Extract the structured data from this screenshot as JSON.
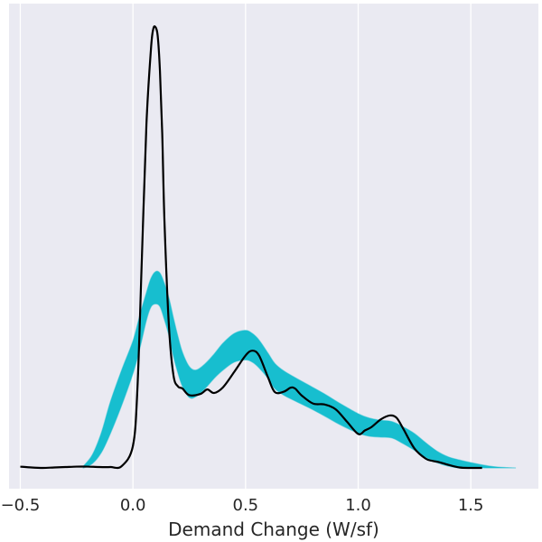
{
  "chart_data": {
    "type": "line",
    "title": "",
    "xlabel": "Demand Change (W/sf)",
    "ylabel": "",
    "xlim": [
      -0.55,
      1.8
    ],
    "ylim": [
      0,
      1
    ],
    "xticks": [
      -0.5,
      0.0,
      0.5,
      1.0,
      1.5
    ],
    "xtick_labels": [
      "−0.5",
      "0.0",
      "0.5",
      "1.0",
      "1.5"
    ],
    "grid": true,
    "colors": {
      "background": "#eaeaf2",
      "grid": "#ffffff",
      "band": "#17becf",
      "observed": "#000000"
    },
    "series": [
      {
        "style": "band",
        "x": [
          -0.22,
          -0.18,
          -0.14,
          -0.1,
          -0.05,
          0.0,
          0.03,
          0.06,
          0.08,
          0.1,
          0.12,
          0.14,
          0.16,
          0.18,
          0.2,
          0.22,
          0.25,
          0.28,
          0.32,
          0.36,
          0.4,
          0.45,
          0.5,
          0.53,
          0.56,
          0.6,
          0.63,
          0.67,
          0.72,
          0.78,
          0.85,
          0.92,
          1.0,
          1.05,
          1.1,
          1.15,
          1.2,
          1.25,
          1.3,
          1.35,
          1.4,
          1.45,
          1.5,
          1.55,
          1.6,
          1.65,
          1.7
        ],
        "lower": [
          0.0,
          0.01,
          0.035,
          0.078,
          0.142,
          0.214,
          0.27,
          0.335,
          0.365,
          0.372,
          0.366,
          0.336,
          0.3,
          0.253,
          0.215,
          0.185,
          0.16,
          0.162,
          0.18,
          0.203,
          0.222,
          0.24,
          0.245,
          0.24,
          0.227,
          0.203,
          0.18,
          0.165,
          0.152,
          0.137,
          0.118,
          0.098,
          0.079,
          0.072,
          0.07,
          0.068,
          0.055,
          0.04,
          0.024,
          0.012,
          0.004,
          0.0,
          0.0,
          0.0,
          0.0,
          0.0,
          0.0
        ],
        "upper": [
          0.004,
          0.03,
          0.08,
          0.15,
          0.222,
          0.288,
          0.345,
          0.398,
          0.43,
          0.445,
          0.442,
          0.418,
          0.385,
          0.34,
          0.298,
          0.262,
          0.23,
          0.222,
          0.236,
          0.258,
          0.283,
          0.305,
          0.312,
          0.305,
          0.29,
          0.26,
          0.237,
          0.22,
          0.205,
          0.188,
          0.168,
          0.146,
          0.123,
          0.113,
          0.108,
          0.105,
          0.093,
          0.078,
          0.057,
          0.038,
          0.025,
          0.018,
          0.012,
          0.007,
          0.003,
          0.001,
          0.0
        ]
      },
      {
        "style": "line",
        "x": [
          -0.5,
          -0.45,
          -0.4,
          -0.35,
          -0.3,
          -0.25,
          -0.2,
          -0.15,
          -0.1,
          -0.05,
          0.0,
          0.02,
          0.04,
          0.06,
          0.08,
          0.09,
          0.1,
          0.11,
          0.12,
          0.13,
          0.14,
          0.16,
          0.18,
          0.2,
          0.22,
          0.25,
          0.3,
          0.33,
          0.36,
          0.4,
          0.45,
          0.5,
          0.53,
          0.56,
          0.6,
          0.63,
          0.67,
          0.7,
          0.72,
          0.75,
          0.8,
          0.85,
          0.9,
          0.95,
          1.0,
          1.03,
          1.06,
          1.1,
          1.14,
          1.17,
          1.2,
          1.25,
          1.3,
          1.33,
          1.36,
          1.4,
          1.45,
          1.5,
          1.55
        ],
        "y": [
          0.003,
          0.001,
          0.0,
          0.001,
          0.002,
          0.003,
          0.003,
          0.002,
          0.002,
          0.004,
          0.05,
          0.18,
          0.48,
          0.78,
          0.95,
          0.995,
          1.0,
          0.98,
          0.9,
          0.76,
          0.56,
          0.32,
          0.21,
          0.185,
          0.18,
          0.165,
          0.168,
          0.178,
          0.17,
          0.183,
          0.218,
          0.255,
          0.266,
          0.255,
          0.205,
          0.172,
          0.173,
          0.182,
          0.18,
          0.164,
          0.146,
          0.144,
          0.133,
          0.105,
          0.077,
          0.085,
          0.093,
          0.11,
          0.119,
          0.114,
          0.089,
          0.044,
          0.021,
          0.016,
          0.013,
          0.007,
          0.001,
          0.0,
          0.0
        ]
      }
    ]
  }
}
